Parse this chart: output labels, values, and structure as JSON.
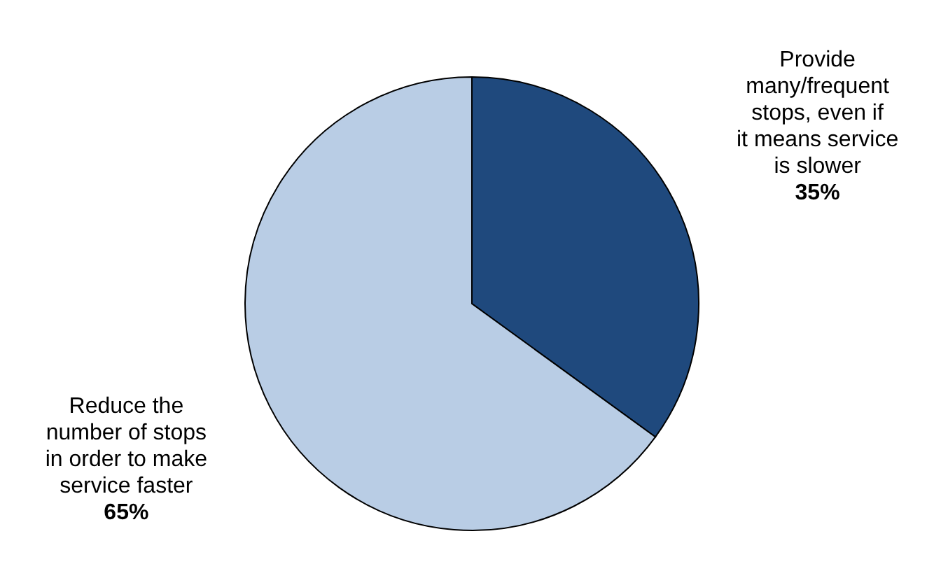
{
  "chart_data": {
    "type": "pie",
    "categories": [
      "Provide many/frequent stops, even if it means service is slower",
      "Reduce the number of stops in order to make service faster"
    ],
    "values": [
      35,
      65
    ],
    "colors": [
      "#1f497d",
      "#b9cde5"
    ],
    "value_labels": [
      "35%",
      "65%"
    ],
    "legend": false
  }
}
